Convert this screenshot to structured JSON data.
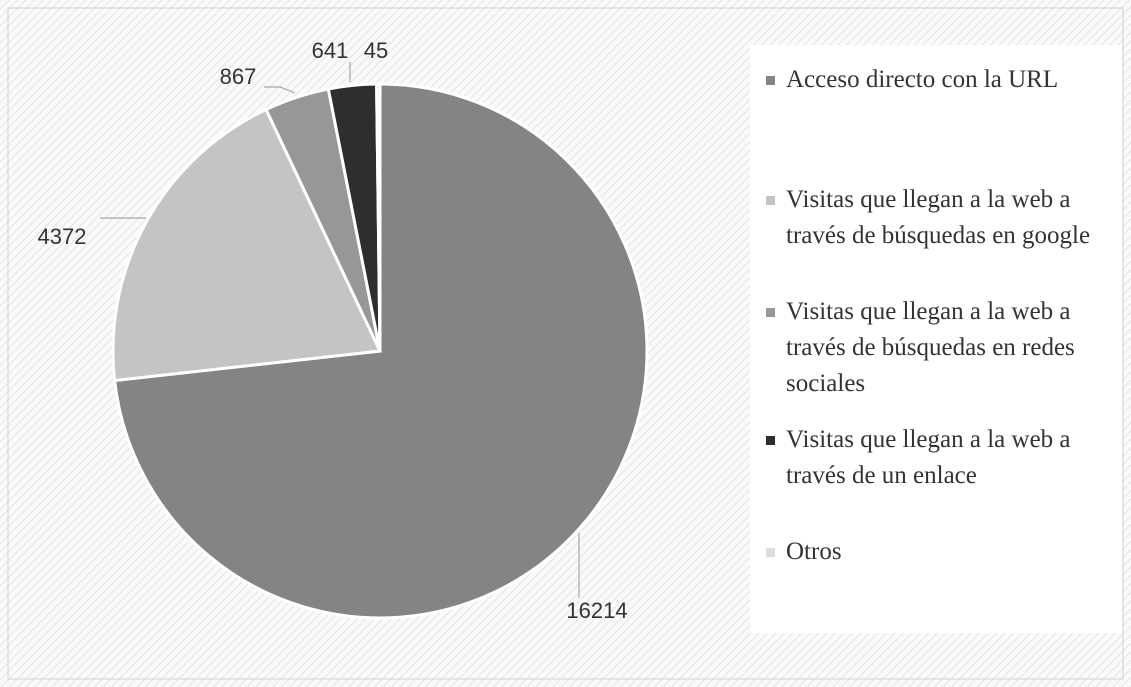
{
  "chart_data": {
    "type": "pie",
    "categories": [
      "Acceso directo con la URL",
      "Visitas que llegan a la web a través de búsquedas en google",
      "Visitas que llegan a la web a través de búsquedas en redes sociales",
      "Visitas que llegan a la web a través de un enlace",
      "Otros"
    ],
    "values": [
      16214,
      4372,
      867,
      641,
      45
    ],
    "colors": [
      "#848484",
      "#c4c4c4",
      "#979797",
      "#2e2e2e",
      "#dedede"
    ],
    "legend": "right"
  }
}
